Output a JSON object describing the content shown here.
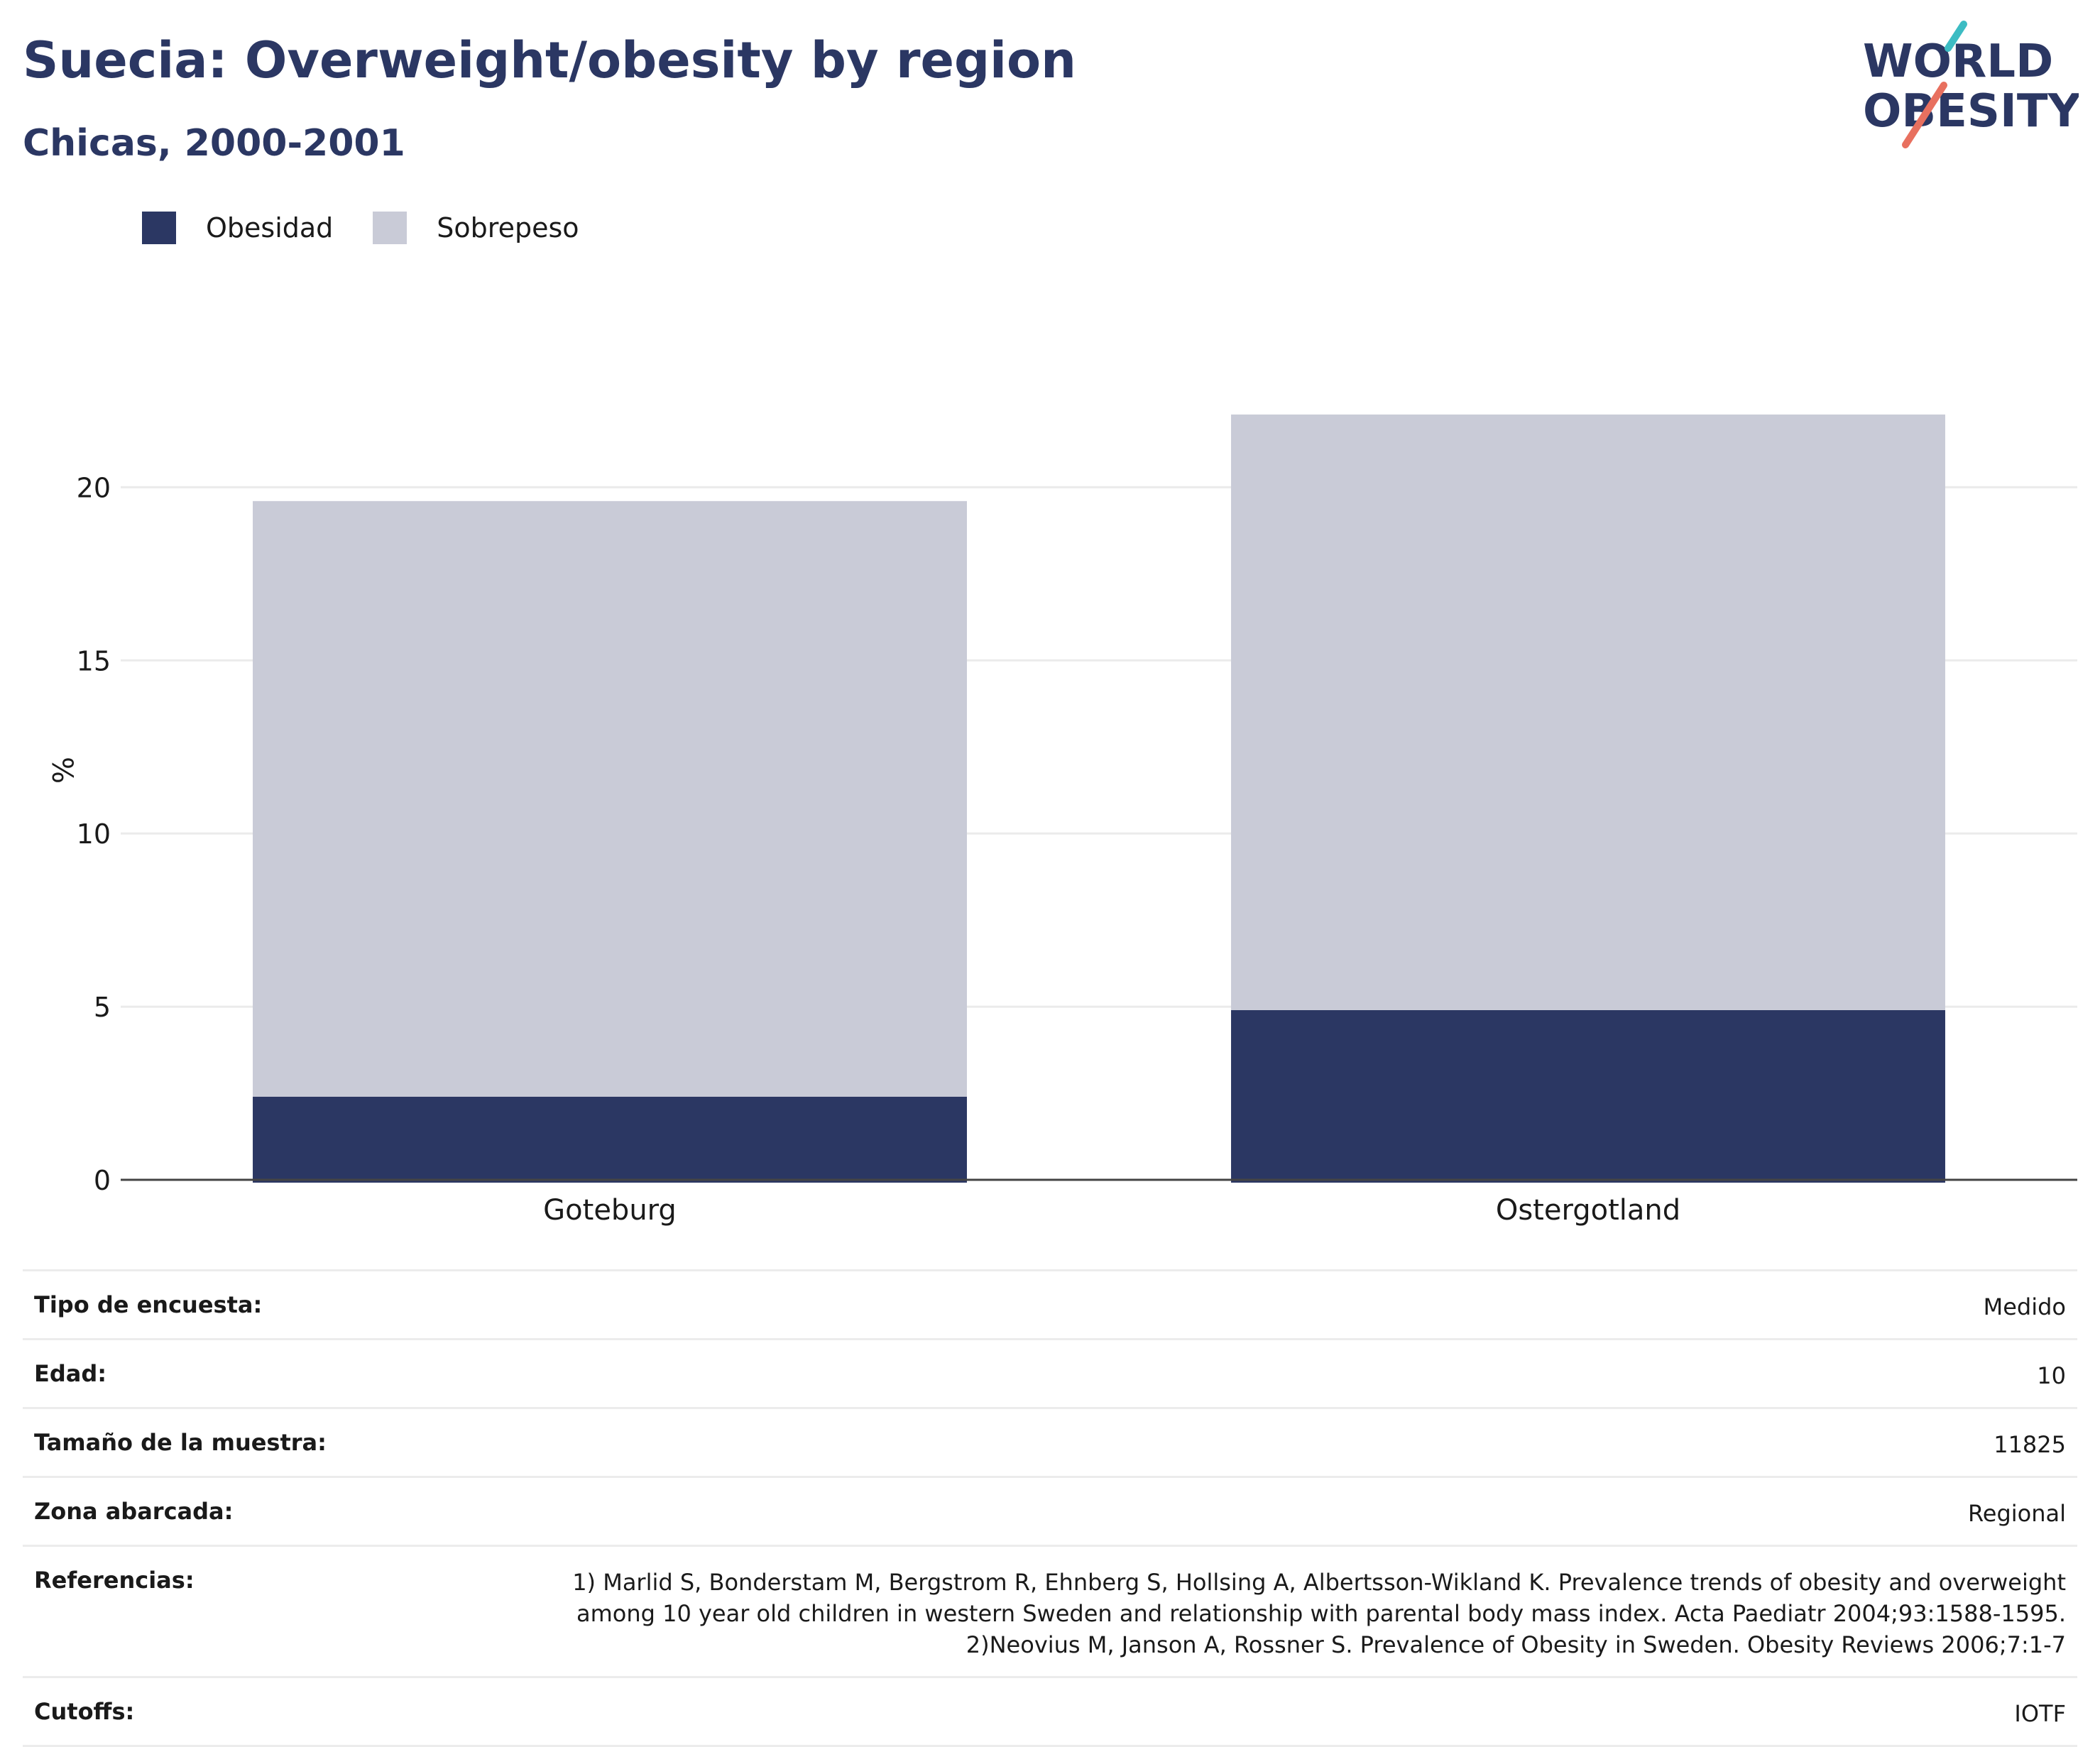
{
  "header": {
    "title": "Suecia: Overweight/obesity by region",
    "subtitle": "Chicas, 2000-2001",
    "logo_top": "WORLD",
    "logo_bottom": "OBESITY"
  },
  "legend": [
    {
      "label": "Obesidad",
      "color": "#2b3763"
    },
    {
      "label": "Sobrepeso",
      "color": "#c9cbd7"
    }
  ],
  "chart_data": {
    "type": "bar",
    "stacked": true,
    "categories": [
      "Goteburg",
      "Ostergotland"
    ],
    "series": [
      {
        "name": "Obesidad",
        "values": [
          2.4,
          4.9
        ],
        "color": "#2b3763"
      },
      {
        "name": "Sobrepeso",
        "values": [
          17.2,
          17.2
        ],
        "color": "#c9cbd7"
      }
    ],
    "ylabel": "%",
    "ylim": [
      0,
      23
    ],
    "yticks": [
      0,
      5,
      10,
      15,
      20
    ],
    "grid": true,
    "legend_position": "top-left"
  },
  "meta": [
    {
      "key": "Tipo de encuesta:",
      "value": "Medido"
    },
    {
      "key": "Edad:",
      "value": "10"
    },
    {
      "key": "Tamaño de la muestra:",
      "value": "11825"
    },
    {
      "key": "Zona abarcada:",
      "value": "Regional"
    },
    {
      "key": "Referencias:",
      "lines": [
        "1) Marlid S, Bonderstam M, Bergstrom R, Ehnberg S, Hollsing A, Albertsson-Wikland K. Prevalence trends of obesity and overweight",
        "among 10 year old children in western Sweden and relationship with parental body mass index. Acta Paediatr 2004;93:1588-1595.",
        "2)Neovius M, Janson A, Rossner S. Prevalence of Obesity in Sweden. Obesity Reviews 2006;7:1-7"
      ]
    },
    {
      "key": "Cutoffs:",
      "value": "IOTF"
    }
  ]
}
